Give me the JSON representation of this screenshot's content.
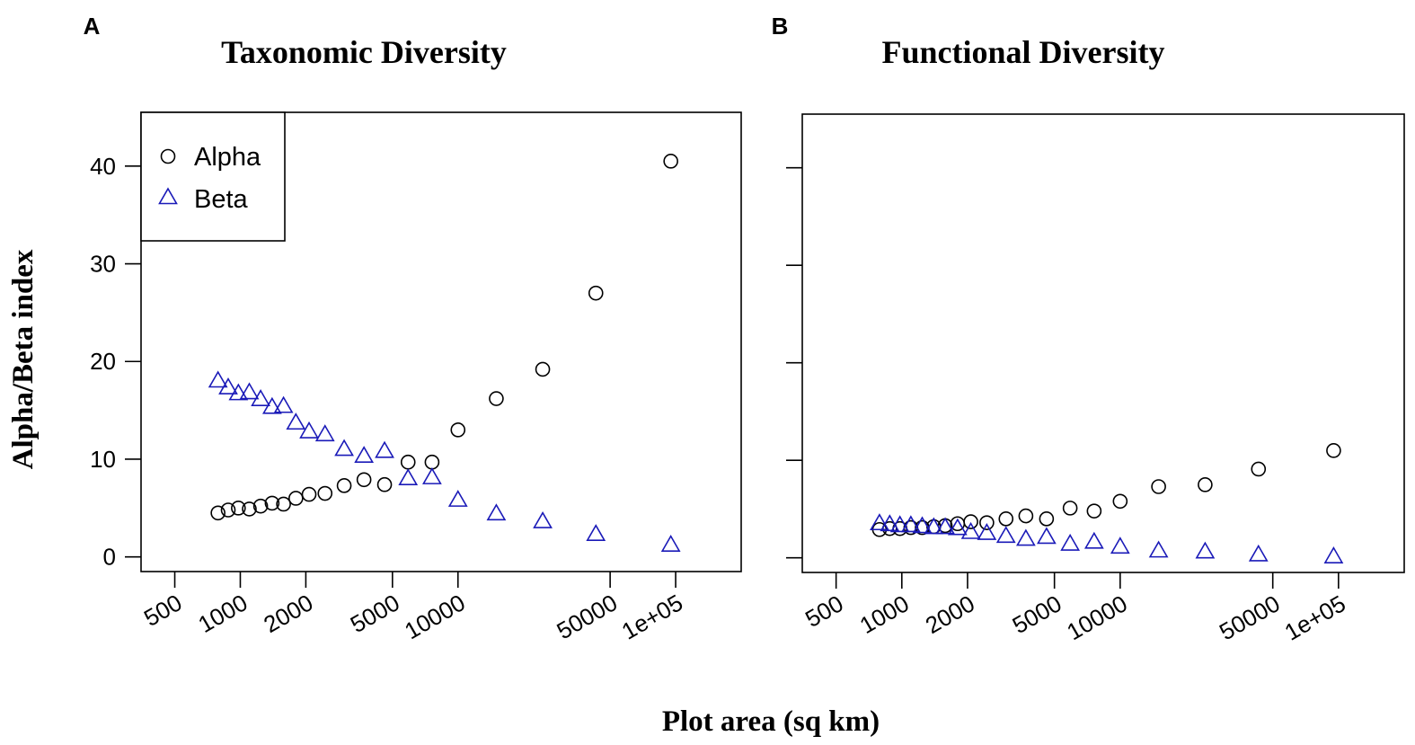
{
  "colors": {
    "alpha": "#000000",
    "beta": "#1a1ab8",
    "axis": "#000000"
  },
  "shared": {
    "xlabel": "Plot area (sq km)",
    "ylabel": "Alpha/Beta index",
    "x_scale": "log"
  },
  "chart_data": [
    {
      "type": "scatter",
      "panel": "A",
      "title": "Taxonomic Diversity",
      "xlim": [
        350,
        200000
      ],
      "ylim": [
        -1.5,
        45.5
      ],
      "x_ticks": [
        500,
        1000,
        2000,
        5000,
        10000,
        50000,
        100000
      ],
      "x_tick_labels": [
        "500",
        "1000",
        "2000",
        "5000",
        "10000",
        "50000",
        "1e+05"
      ],
      "y_ticks": [
        0,
        10,
        20,
        30,
        40
      ],
      "y_tick_labels": [
        "0",
        "10",
        "20",
        "30",
        "40"
      ],
      "legend": {
        "position": "top-left",
        "entries": [
          "Alpha",
          "Beta"
        ]
      },
      "series": [
        {
          "name": "Alpha",
          "marker": "circle",
          "color": "#000000",
          "x": [
            790,
            880,
            980,
            1100,
            1240,
            1400,
            1580,
            1800,
            2070,
            2450,
            3000,
            3700,
            4600,
            5900,
            7600,
            10000,
            15000,
            24500,
            43000,
            95000
          ],
          "y": [
            4.5,
            4.8,
            5.0,
            4.9,
            5.2,
            5.5,
            5.4,
            6.0,
            6.4,
            6.5,
            7.3,
            7.9,
            7.4,
            9.7,
            9.7,
            13.0,
            16.2,
            19.2,
            27.0,
            40.5
          ]
        },
        {
          "name": "Beta",
          "marker": "triangle",
          "color": "#1a1ab8",
          "x": [
            790,
            880,
            980,
            1100,
            1240,
            1400,
            1580,
            1800,
            2070,
            2450,
            3000,
            3700,
            4600,
            5900,
            7600,
            10000,
            15000,
            24500,
            43000,
            95000
          ],
          "y": [
            18.0,
            17.3,
            16.7,
            16.8,
            16.1,
            15.3,
            15.4,
            13.7,
            12.8,
            12.5,
            11.0,
            10.3,
            10.8,
            8.0,
            8.1,
            5.8,
            4.4,
            3.6,
            2.3,
            1.2
          ]
        }
      ]
    },
    {
      "type": "scatter",
      "panel": "B",
      "title": "Functional Diversity",
      "xlim": [
        350,
        200000
      ],
      "ylim": [
        -1.5,
        45.5
      ],
      "x_ticks": [
        500,
        1000,
        2000,
        5000,
        10000,
        50000,
        100000
      ],
      "x_tick_labels": [
        "500",
        "1000",
        "2000",
        "5000",
        "10000",
        "50000",
        "1e+05"
      ],
      "y_ticks": [
        0,
        10,
        20,
        30,
        40
      ],
      "y_tick_labels": [
        "",
        "",
        "",
        "",
        ""
      ],
      "series": [
        {
          "name": "Alpha",
          "marker": "circle",
          "color": "#000000",
          "x": [
            790,
            880,
            980,
            1100,
            1240,
            1400,
            1580,
            1800,
            2070,
            2450,
            3000,
            3700,
            4600,
            5900,
            7600,
            10000,
            15000,
            24500,
            43000,
            95000
          ],
          "y": [
            2.9,
            3.0,
            3.0,
            3.1,
            3.1,
            3.2,
            3.3,
            3.5,
            3.7,
            3.6,
            4.0,
            4.3,
            4.0,
            5.1,
            4.8,
            5.8,
            7.3,
            7.5,
            9.1,
            11.0
          ]
        },
        {
          "name": "Beta",
          "marker": "triangle",
          "color": "#1a1ab8",
          "x": [
            790,
            880,
            980,
            1100,
            1240,
            1400,
            1580,
            1800,
            2070,
            2450,
            3000,
            3700,
            4600,
            5900,
            7600,
            10000,
            15000,
            24500,
            43000,
            95000
          ],
          "y": [
            3.5,
            3.4,
            3.3,
            3.3,
            3.2,
            3.1,
            3.1,
            3.0,
            2.6,
            2.5,
            2.2,
            1.9,
            2.1,
            1.4,
            1.6,
            1.1,
            0.7,
            0.6,
            0.3,
            0.1
          ]
        }
      ]
    }
  ]
}
